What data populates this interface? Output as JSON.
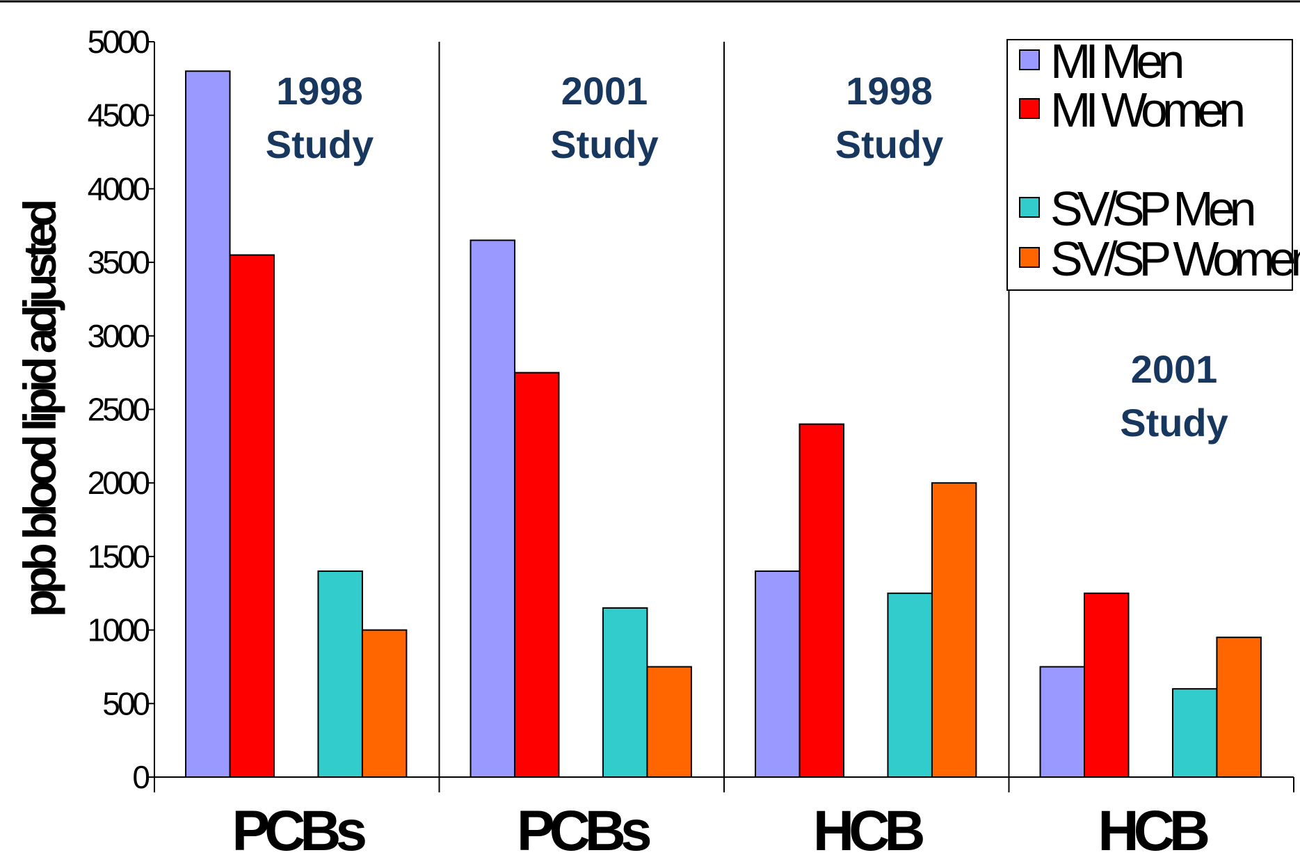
{
  "chart_data": {
    "type": "bar",
    "title": "",
    "xlabel": "",
    "ylabel": "ppb blood lipid adjusted",
    "ylim": [
      0,
      5000
    ],
    "yticks": [
      0,
      500,
      1000,
      1500,
      2000,
      2500,
      3000,
      3500,
      4000,
      4500,
      5000
    ],
    "categories": [
      "PCBs",
      "PCBs",
      "HCB",
      "HCB"
    ],
    "group_annotations": [
      {
        "line1": "1998",
        "line2": "Study"
      },
      {
        "line1": "2001",
        "line2": "Study"
      },
      {
        "line1": "1998",
        "line2": "Study"
      },
      {
        "line1": "2001",
        "line2": "Study"
      }
    ],
    "series": [
      {
        "name": "MI Men",
        "color": "#9999ff",
        "values": [
          4800,
          3650,
          1400,
          750
        ]
      },
      {
        "name": "MI Women",
        "color": "#ff0000",
        "values": [
          3550,
          2750,
          2400,
          1250
        ]
      },
      {
        "name": "SV/SP Men",
        "color": "#33cccc",
        "values": [
          1400,
          1150,
          1250,
          600
        ]
      },
      {
        "name": "SV/SP Women",
        "color": "#ff6600",
        "values": [
          1000,
          750,
          2000,
          950
        ]
      }
    ],
    "grid": false,
    "legend_position": "top-right"
  }
}
